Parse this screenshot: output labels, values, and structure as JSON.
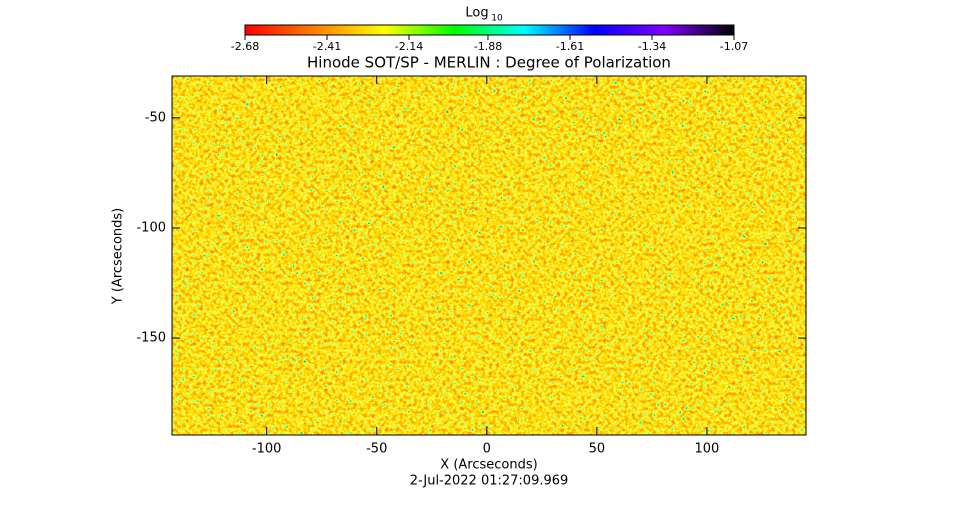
{
  "chart_data": {
    "type": "heatmap",
    "title": "Hinode SOT/SP - MERLIN : Degree of Polarization",
    "subtitle": "2-Jul-2022 01:27:09.969",
    "x_label": "X (Arcseconds)",
    "y_label": "Y (Arcseconds)",
    "xlim": [
      -143,
      145
    ],
    "xticks": [
      -100,
      -50,
      0,
      50,
      100
    ],
    "ylim": [
      -194,
      -31
    ],
    "yticks": [
      -150,
      -100,
      -50
    ],
    "colorbar": {
      "label": "Log",
      "label_sub": "10",
      "lim": [
        -2.68,
        -1.07
      ],
      "ticks": [
        -2.68,
        -2.41,
        -2.14,
        -1.88,
        -1.61,
        -1.34,
        -1.07
      ],
      "colors": [
        "#ff0000",
        "#ff8000",
        "#ffff00",
        "#00ff00",
        "#00ffff",
        "#0000ff",
        "#8000ff",
        "#000000"
      ]
    }
  }
}
